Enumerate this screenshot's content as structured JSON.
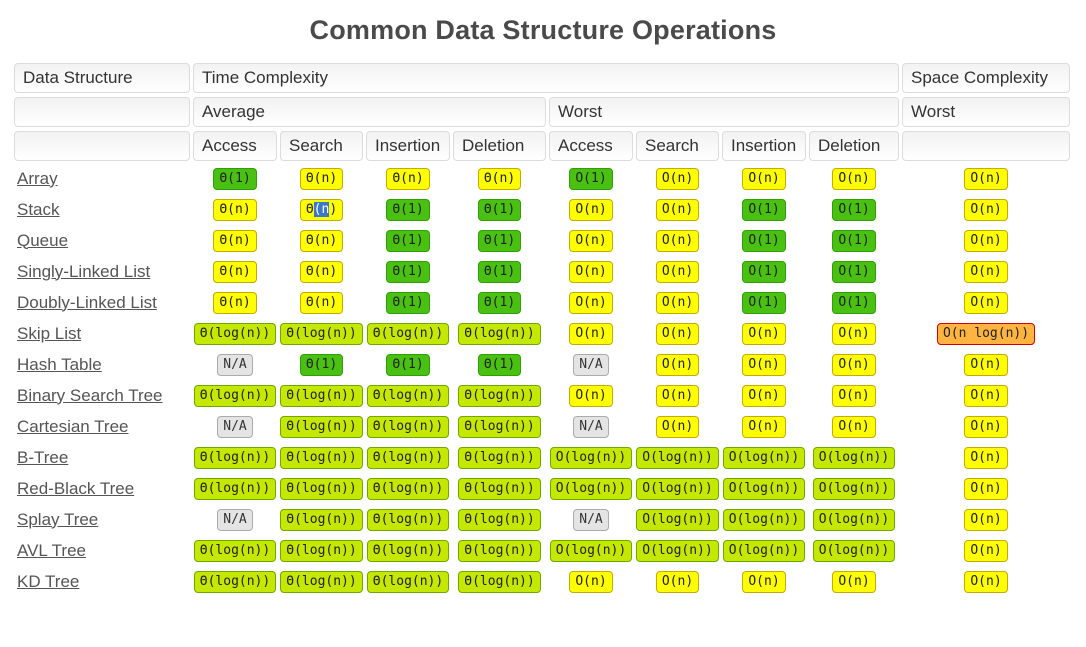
{
  "title": "Common Data Structure Operations",
  "table": {
    "header": {
      "data_structure": "Data Structure",
      "time_complexity": "Time Complexity",
      "space_complexity": "Space Complexity",
      "average": "Average",
      "worst": "Worst",
      "space_worst": "Worst",
      "ops": [
        "Access",
        "Search",
        "Insertion",
        "Deletion"
      ]
    },
    "rows": [
      {
        "name": "Array",
        "slug": "array",
        "cells": [
          {
            "t": "Θ(1)",
            "c": "green"
          },
          {
            "t": "Θ(n)",
            "c": "yellow"
          },
          {
            "t": "Θ(n)",
            "c": "yellow"
          },
          {
            "t": "Θ(n)",
            "c": "yellow"
          },
          {
            "t": "O(1)",
            "c": "green"
          },
          {
            "t": "O(n)",
            "c": "yellow"
          },
          {
            "t": "O(n)",
            "c": "yellow"
          },
          {
            "t": "O(n)",
            "c": "yellow"
          },
          {
            "t": "O(n)",
            "c": "yellow"
          }
        ]
      },
      {
        "name": "Stack",
        "slug": "stack",
        "cells": [
          {
            "t": "Θ(n)",
            "c": "yellow"
          },
          {
            "t": "Θ(n)",
            "c": "yellow",
            "sel": [
              "Θ",
              "(n",
              ")"
            ]
          },
          {
            "t": "Θ(1)",
            "c": "green"
          },
          {
            "t": "Θ(1)",
            "c": "green"
          },
          {
            "t": "O(n)",
            "c": "yellow"
          },
          {
            "t": "O(n)",
            "c": "yellow"
          },
          {
            "t": "O(1)",
            "c": "green"
          },
          {
            "t": "O(1)",
            "c": "green"
          },
          {
            "t": "O(n)",
            "c": "yellow"
          }
        ]
      },
      {
        "name": "Queue",
        "slug": "queue",
        "cells": [
          {
            "t": "Θ(n)",
            "c": "yellow"
          },
          {
            "t": "Θ(n)",
            "c": "yellow"
          },
          {
            "t": "Θ(1)",
            "c": "green"
          },
          {
            "t": "Θ(1)",
            "c": "green"
          },
          {
            "t": "O(n)",
            "c": "yellow"
          },
          {
            "t": "O(n)",
            "c": "yellow"
          },
          {
            "t": "O(1)",
            "c": "green"
          },
          {
            "t": "O(1)",
            "c": "green"
          },
          {
            "t": "O(n)",
            "c": "yellow"
          }
        ]
      },
      {
        "name": "Singly-Linked List",
        "slug": "singly-linked-list",
        "cells": [
          {
            "t": "Θ(n)",
            "c": "yellow"
          },
          {
            "t": "Θ(n)",
            "c": "yellow"
          },
          {
            "t": "Θ(1)",
            "c": "green"
          },
          {
            "t": "Θ(1)",
            "c": "green"
          },
          {
            "t": "O(n)",
            "c": "yellow"
          },
          {
            "t": "O(n)",
            "c": "yellow"
          },
          {
            "t": "O(1)",
            "c": "green"
          },
          {
            "t": "O(1)",
            "c": "green"
          },
          {
            "t": "O(n)",
            "c": "yellow"
          }
        ]
      },
      {
        "name": "Doubly-Linked List",
        "slug": "doubly-linked-list",
        "cells": [
          {
            "t": "Θ(n)",
            "c": "yellow"
          },
          {
            "t": "Θ(n)",
            "c": "yellow"
          },
          {
            "t": "Θ(1)",
            "c": "green"
          },
          {
            "t": "Θ(1)",
            "c": "green"
          },
          {
            "t": "O(n)",
            "c": "yellow"
          },
          {
            "t": "O(n)",
            "c": "yellow"
          },
          {
            "t": "O(1)",
            "c": "green"
          },
          {
            "t": "O(1)",
            "c": "green"
          },
          {
            "t": "O(n)",
            "c": "yellow"
          }
        ]
      },
      {
        "name": "Skip List",
        "slug": "skip-list",
        "cells": [
          {
            "t": "Θ(log(n))",
            "c": "yellowgreen"
          },
          {
            "t": "Θ(log(n))",
            "c": "yellowgreen"
          },
          {
            "t": "Θ(log(n))",
            "c": "yellowgreen"
          },
          {
            "t": "Θ(log(n))",
            "c": "yellowgreen"
          },
          {
            "t": "O(n)",
            "c": "yellow"
          },
          {
            "t": "O(n)",
            "c": "yellow"
          },
          {
            "t": "O(n)",
            "c": "yellow"
          },
          {
            "t": "O(n)",
            "c": "yellow"
          },
          {
            "t": "O(n log(n))",
            "c": "orange"
          }
        ]
      },
      {
        "name": "Hash Table",
        "slug": "hash-table",
        "cells": [
          {
            "t": "N/A",
            "c": "gray"
          },
          {
            "t": "Θ(1)",
            "c": "green"
          },
          {
            "t": "Θ(1)",
            "c": "green"
          },
          {
            "t": "Θ(1)",
            "c": "green"
          },
          {
            "t": "N/A",
            "c": "gray"
          },
          {
            "t": "O(n)",
            "c": "yellow"
          },
          {
            "t": "O(n)",
            "c": "yellow"
          },
          {
            "t": "O(n)",
            "c": "yellow"
          },
          {
            "t": "O(n)",
            "c": "yellow"
          }
        ]
      },
      {
        "name": "Binary Search Tree",
        "slug": "binary-search-tree",
        "cells": [
          {
            "t": "Θ(log(n))",
            "c": "yellowgreen"
          },
          {
            "t": "Θ(log(n))",
            "c": "yellowgreen"
          },
          {
            "t": "Θ(log(n))",
            "c": "yellowgreen"
          },
          {
            "t": "Θ(log(n))",
            "c": "yellowgreen"
          },
          {
            "t": "O(n)",
            "c": "yellow"
          },
          {
            "t": "O(n)",
            "c": "yellow"
          },
          {
            "t": "O(n)",
            "c": "yellow"
          },
          {
            "t": "O(n)",
            "c": "yellow"
          },
          {
            "t": "O(n)",
            "c": "yellow"
          }
        ]
      },
      {
        "name": "Cartesian Tree",
        "slug": "cartesian-tree",
        "cells": [
          {
            "t": "N/A",
            "c": "gray"
          },
          {
            "t": "Θ(log(n))",
            "c": "yellowgreen"
          },
          {
            "t": "Θ(log(n))",
            "c": "yellowgreen"
          },
          {
            "t": "Θ(log(n))",
            "c": "yellowgreen"
          },
          {
            "t": "N/A",
            "c": "gray"
          },
          {
            "t": "O(n)",
            "c": "yellow"
          },
          {
            "t": "O(n)",
            "c": "yellow"
          },
          {
            "t": "O(n)",
            "c": "yellow"
          },
          {
            "t": "O(n)",
            "c": "yellow"
          }
        ]
      },
      {
        "name": "B-Tree",
        "slug": "b-tree",
        "cells": [
          {
            "t": "Θ(log(n))",
            "c": "yellowgreen"
          },
          {
            "t": "Θ(log(n))",
            "c": "yellowgreen"
          },
          {
            "t": "Θ(log(n))",
            "c": "yellowgreen"
          },
          {
            "t": "Θ(log(n))",
            "c": "yellowgreen"
          },
          {
            "t": "O(log(n))",
            "c": "yellowgreen"
          },
          {
            "t": "O(log(n))",
            "c": "yellowgreen"
          },
          {
            "t": "O(log(n))",
            "c": "yellowgreen"
          },
          {
            "t": "O(log(n))",
            "c": "yellowgreen"
          },
          {
            "t": "O(n)",
            "c": "yellow"
          }
        ]
      },
      {
        "name": "Red-Black Tree",
        "slug": "red-black-tree",
        "cells": [
          {
            "t": "Θ(log(n))",
            "c": "yellowgreen"
          },
          {
            "t": "Θ(log(n))",
            "c": "yellowgreen"
          },
          {
            "t": "Θ(log(n))",
            "c": "yellowgreen"
          },
          {
            "t": "Θ(log(n))",
            "c": "yellowgreen"
          },
          {
            "t": "O(log(n))",
            "c": "yellowgreen"
          },
          {
            "t": "O(log(n))",
            "c": "yellowgreen"
          },
          {
            "t": "O(log(n))",
            "c": "yellowgreen"
          },
          {
            "t": "O(log(n))",
            "c": "yellowgreen"
          },
          {
            "t": "O(n)",
            "c": "yellow"
          }
        ]
      },
      {
        "name": "Splay Tree",
        "slug": "splay-tree",
        "cells": [
          {
            "t": "N/A",
            "c": "gray"
          },
          {
            "t": "Θ(log(n))",
            "c": "yellowgreen"
          },
          {
            "t": "Θ(log(n))",
            "c": "yellowgreen"
          },
          {
            "t": "Θ(log(n))",
            "c": "yellowgreen"
          },
          {
            "t": "N/A",
            "c": "gray"
          },
          {
            "t": "O(log(n))",
            "c": "yellowgreen"
          },
          {
            "t": "O(log(n))",
            "c": "yellowgreen"
          },
          {
            "t": "O(log(n))",
            "c": "yellowgreen"
          },
          {
            "t": "O(n)",
            "c": "yellow"
          }
        ]
      },
      {
        "name": "AVL Tree",
        "slug": "avl-tree",
        "cells": [
          {
            "t": "Θ(log(n))",
            "c": "yellowgreen"
          },
          {
            "t": "Θ(log(n))",
            "c": "yellowgreen"
          },
          {
            "t": "Θ(log(n))",
            "c": "yellowgreen"
          },
          {
            "t": "Θ(log(n))",
            "c": "yellowgreen"
          },
          {
            "t": "O(log(n))",
            "c": "yellowgreen"
          },
          {
            "t": "O(log(n))",
            "c": "yellowgreen"
          },
          {
            "t": "O(log(n))",
            "c": "yellowgreen"
          },
          {
            "t": "O(log(n))",
            "c": "yellowgreen"
          },
          {
            "t": "O(n)",
            "c": "yellow"
          }
        ]
      },
      {
        "name": "KD Tree",
        "slug": "kd-tree",
        "cells": [
          {
            "t": "Θ(log(n))",
            "c": "yellowgreen"
          },
          {
            "t": "Θ(log(n))",
            "c": "yellowgreen"
          },
          {
            "t": "Θ(log(n))",
            "c": "yellowgreen"
          },
          {
            "t": "Θ(log(n))",
            "c": "yellowgreen"
          },
          {
            "t": "O(n)",
            "c": "yellow"
          },
          {
            "t": "O(n)",
            "c": "yellow"
          },
          {
            "t": "O(n)",
            "c": "yellow"
          },
          {
            "t": "O(n)",
            "c": "yellow"
          },
          {
            "t": "O(n)",
            "c": "yellow"
          }
        ]
      }
    ]
  },
  "colors": {
    "green": "#4AC112",
    "green_border": "#2F9E00",
    "yellow": "#FFFF00",
    "yellow_border": "#C2AC00",
    "yellowgreen": "#C5E801",
    "yellowgreen_border": "#6FA800",
    "orange": "#FFB441",
    "orange_border": "#D10000",
    "gray": "#E4E4E4",
    "gray_border": "#ABABAB",
    "selection_bg": "#3C78C8",
    "selection_fg": "#FFFFFF",
    "link": "#555555",
    "header_text": "#333333",
    "title": "#4A4A4A"
  }
}
